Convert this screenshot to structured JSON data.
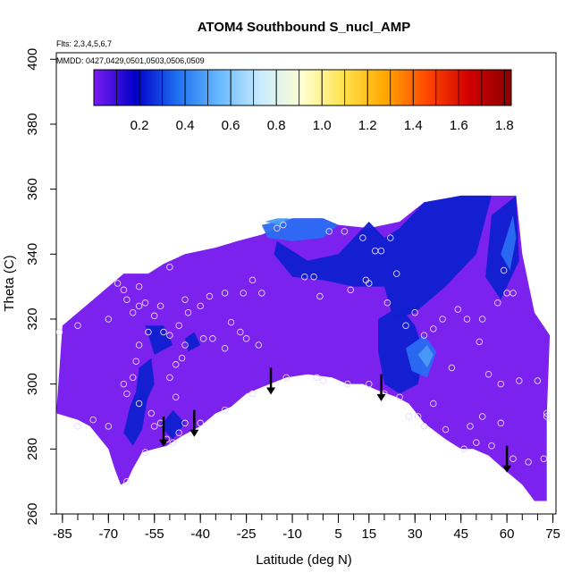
{
  "chart_data": {
    "type": "heatmap",
    "title": "ATOM4 Southbound S_nucl_AMP",
    "annotations": {
      "flights": "Flts: 2,3,4,5,6,7",
      "dates": "MMDD: 0427,0429,0501,0503,0506,0509"
    },
    "xlabel": "Latitude (deg N)",
    "ylabel": "Theta (C)",
    "xlim": [
      -87,
      76
    ],
    "ylim": [
      260,
      402
    ],
    "x_ticks": [
      -85,
      -70,
      -55,
      -40,
      -25,
      -10,
      5,
      15,
      30,
      45,
      60,
      75
    ],
    "x_minor_step": 5,
    "y_ticks": [
      260,
      280,
      300,
      320,
      340,
      360,
      380,
      400
    ],
    "grid": false,
    "colorbar": {
      "placement": "top-inside",
      "range": [
        0.0,
        1.83
      ],
      "ticks": [
        0.2,
        0.4,
        0.6,
        0.8,
        1.0,
        1.2,
        1.4,
        1.6,
        1.8
      ],
      "colors": [
        "#7a1cf0",
        "#0000c8",
        "#1f6ff0",
        "#66b8ff",
        "#c9ecff",
        "#ffffd0",
        "#ffe24a",
        "#ffa500",
        "#ff4500",
        "#d00000",
        "#8b0000"
      ]
    },
    "domain_colors": {
      "background_field": "#7b22ee",
      "darkblue": "#1020d0",
      "blue": "#2a6df2",
      "lightblue": "#4a9af5",
      "point_stroke": "#e8d8ff"
    },
    "domain_outline": [
      [
        -87,
        291
      ],
      [
        -85,
        318
      ],
      [
        -75,
        326
      ],
      [
        -65,
        334
      ],
      [
        -57,
        334
      ],
      [
        -52,
        337
      ],
      [
        -45,
        340
      ],
      [
        -35,
        342
      ],
      [
        -28,
        344
      ],
      [
        -20,
        346
      ],
      [
        -15,
        348
      ],
      [
        -10,
        351
      ],
      [
        -5,
        351
      ],
      [
        0,
        351
      ],
      [
        5,
        349
      ],
      [
        15,
        348
      ],
      [
        25,
        350
      ],
      [
        33,
        356
      ],
      [
        45,
        358
      ],
      [
        55,
        358
      ],
      [
        63,
        358
      ],
      [
        65,
        340
      ],
      [
        69,
        322
      ],
      [
        74,
        315
      ],
      [
        73,
        290
      ],
      [
        73,
        264
      ],
      [
        69,
        264
      ],
      [
        65,
        269
      ],
      [
        60,
        273
      ],
      [
        54,
        278
      ],
      [
        49,
        280
      ],
      [
        45,
        280
      ],
      [
        40,
        283
      ],
      [
        33,
        288
      ],
      [
        28,
        294
      ],
      [
        24,
        296
      ],
      [
        18,
        298
      ],
      [
        13,
        300
      ],
      [
        8,
        300
      ],
      [
        3,
        302
      ],
      [
        -5,
        303
      ],
      [
        -12,
        302
      ],
      [
        -20,
        299
      ],
      [
        -25,
        297
      ],
      [
        -30,
        293
      ],
      [
        -35,
        291
      ],
      [
        -40,
        287
      ],
      [
        -46,
        284
      ],
      [
        -51,
        281
      ],
      [
        -55,
        280
      ],
      [
        -59,
        279
      ],
      [
        -62,
        274
      ],
      [
        -64,
        270
      ],
      [
        -66,
        269
      ],
      [
        -68,
        274
      ],
      [
        -70,
        280
      ],
      [
        -76,
        287
      ],
      [
        -80,
        289
      ]
    ],
    "regions": [
      {
        "level": "darkblue",
        "points": [
          [
            -62,
            281
          ],
          [
            -59,
            286
          ],
          [
            -57,
            297
          ],
          [
            -60,
            300
          ],
          [
            -63,
            293
          ],
          [
            -65,
            285
          ]
        ]
      },
      {
        "level": "darkblue",
        "points": [
          [
            -60,
            305
          ],
          [
            -56,
            308
          ],
          [
            -55,
            300
          ],
          [
            -58,
            294
          ],
          [
            -61,
            298
          ]
        ]
      },
      {
        "level": "darkblue",
        "points": [
          [
            -58,
            318
          ],
          [
            -52,
            318
          ],
          [
            -49,
            312
          ],
          [
            -55,
            309
          ]
        ]
      },
      {
        "level": "darkblue",
        "points": [
          [
            -53,
            287
          ],
          [
            -49,
            292
          ],
          [
            -45,
            288
          ],
          [
            -49,
            283
          ]
        ]
      },
      {
        "level": "darkblue",
        "points": [
          [
            -45,
            314
          ],
          [
            -42,
            316
          ],
          [
            -40,
            312
          ],
          [
            -44,
            310
          ]
        ]
      },
      {
        "level": "darkblue",
        "points": [
          [
            -15,
            344
          ],
          [
            -5,
            338
          ],
          [
            5,
            340
          ],
          [
            15,
            350
          ],
          [
            20,
            345
          ],
          [
            25,
            348
          ],
          [
            33,
            356
          ],
          [
            45,
            358
          ],
          [
            55,
            358
          ],
          [
            50,
            340
          ],
          [
            40,
            330
          ],
          [
            30,
            322
          ],
          [
            23,
            320
          ],
          [
            20,
            330
          ],
          [
            10,
            330
          ],
          [
            0,
            332
          ],
          [
            -10,
            333
          ],
          [
            -16,
            340
          ]
        ]
      },
      {
        "level": "darkblue",
        "points": [
          [
            18,
            320
          ],
          [
            25,
            324
          ],
          [
            30,
            318
          ],
          [
            33,
            310
          ],
          [
            31,
            300
          ],
          [
            25,
            297
          ],
          [
            20,
            300
          ],
          [
            18,
            310
          ]
        ]
      },
      {
        "level": "darkblue",
        "points": [
          [
            55,
            352
          ],
          [
            63,
            358
          ],
          [
            64,
            338
          ],
          [
            58,
            326
          ],
          [
            53,
            333
          ]
        ]
      },
      {
        "level": "blue",
        "points": [
          [
            -20,
            349
          ],
          [
            -10,
            351
          ],
          [
            0,
            351
          ],
          [
            5,
            349
          ],
          [
            0,
            345
          ],
          [
            -10,
            344
          ],
          [
            -18,
            345
          ]
        ]
      },
      {
        "level": "blue",
        "points": [
          [
            27,
            311
          ],
          [
            33,
            315
          ],
          [
            37,
            310
          ],
          [
            34,
            302
          ],
          [
            29,
            304
          ]
        ]
      },
      {
        "level": "blue",
        "points": [
          [
            58,
            340
          ],
          [
            62,
            352
          ],
          [
            63,
            345
          ],
          [
            61,
            335
          ]
        ]
      },
      {
        "level": "lightblue",
        "points": [
          [
            -19,
            350
          ],
          [
            -15,
            351
          ],
          [
            -11,
            351
          ],
          [
            -14,
            349
          ]
        ]
      },
      {
        "level": "lightblue",
        "points": [
          [
            31,
            309
          ],
          [
            34,
            312
          ],
          [
            36,
            309
          ],
          [
            34,
            305
          ]
        ]
      }
    ],
    "arrows": [
      {
        "x": -52,
        "y_top": 290,
        "y_bottom": 281
      },
      {
        "x": -42,
        "y_top": 292,
        "y_bottom": 284
      },
      {
        "x": -17,
        "y_top": 305,
        "y_bottom": 297
      },
      {
        "x": 19,
        "y_top": 303,
        "y_bottom": 295
      },
      {
        "x": 60,
        "y_top": 281,
        "y_bottom": 273
      }
    ],
    "points": [
      [
        -67,
        331
      ],
      [
        -65,
        329
      ],
      [
        -64,
        326
      ],
      [
        -62,
        322
      ],
      [
        -60,
        330
      ],
      [
        -58,
        325
      ],
      [
        -55,
        321
      ],
      [
        -57,
        316
      ],
      [
        -60,
        312
      ],
      [
        -61,
        307
      ],
      [
        -62,
        302
      ],
      [
        -65,
        300
      ],
      [
        -64,
        297
      ],
      [
        -60,
        294
      ],
      [
        -56,
        291
      ],
      [
        -53,
        288
      ],
      [
        -51,
        283
      ],
      [
        -49,
        282
      ],
      [
        -47,
        285
      ],
      [
        -45,
        288
      ],
      [
        -58,
        279
      ],
      [
        -64,
        270
      ],
      [
        -70,
        287
      ],
      [
        -75,
        289
      ],
      [
        -80,
        287
      ],
      [
        -86,
        316
      ],
      [
        -80,
        318
      ],
      [
        -70,
        320
      ],
      [
        -53,
        324
      ],
      [
        -50,
        336
      ],
      [
        -50,
        315
      ],
      [
        -47,
        318
      ],
      [
        -44,
        322
      ],
      [
        -40,
        324
      ],
      [
        -45,
        312
      ],
      [
        -46,
        308
      ],
      [
        -48,
        306
      ],
      [
        -50,
        302
      ],
      [
        -48,
        296
      ],
      [
        -39,
        314
      ],
      [
        -36,
        314
      ],
      [
        -30,
        319
      ],
      [
        -27,
        316
      ],
      [
        -25,
        314
      ],
      [
        -32,
        311
      ],
      [
        -21,
        312
      ],
      [
        -20,
        328
      ],
      [
        -23,
        332
      ],
      [
        -26,
        328
      ],
      [
        -32,
        328
      ],
      [
        -37,
        327
      ],
      [
        -15,
        348
      ],
      [
        -13,
        349
      ],
      [
        -6,
        333
      ],
      [
        -3,
        333
      ],
      [
        -1,
        327
      ],
      [
        2,
        347
      ],
      [
        7,
        347
      ],
      [
        9,
        329
      ],
      [
        13,
        345
      ],
      [
        15,
        331
      ],
      [
        17,
        341
      ],
      [
        19,
        341
      ],
      [
        22,
        345
      ],
      [
        24,
        334
      ],
      [
        27,
        318
      ],
      [
        30,
        322
      ],
      [
        33,
        315
      ],
      [
        36,
        317
      ],
      [
        39,
        320
      ],
      [
        44,
        323
      ],
      [
        47,
        320
      ],
      [
        52,
        320
      ],
      [
        57,
        325
      ],
      [
        60,
        328
      ],
      [
        59,
        335
      ],
      [
        62,
        328
      ],
      [
        51,
        313
      ],
      [
        54,
        303
      ],
      [
        58,
        300
      ],
      [
        64,
        301
      ],
      [
        70,
        301
      ],
      [
        73,
        291
      ],
      [
        73,
        290
      ],
      [
        36,
        294
      ],
      [
        31,
        290
      ],
      [
        28,
        290
      ],
      [
        25,
        296
      ],
      [
        20,
        297
      ],
      [
        15,
        300
      ],
      [
        8,
        300
      ],
      [
        0,
        301
      ],
      [
        -2,
        302
      ],
      [
        -12,
        302
      ],
      [
        -23,
        297
      ],
      [
        -32,
        292
      ],
      [
        -40,
        288
      ],
      [
        -55,
        287
      ],
      [
        -45,
        326
      ],
      [
        -60,
        324
      ],
      [
        -52,
        316
      ],
      [
        14,
        332
      ],
      [
        21,
        325
      ],
      [
        42,
        305
      ],
      [
        46,
        280
      ],
      [
        50,
        282
      ],
      [
        55,
        281
      ],
      [
        62,
        277
      ],
      [
        67,
        276
      ],
      [
        72,
        277
      ],
      [
        58,
        288
      ],
      [
        52,
        290
      ],
      [
        48,
        287
      ],
      [
        40,
        286
      ],
      [
        33,
        287
      ]
    ]
  }
}
